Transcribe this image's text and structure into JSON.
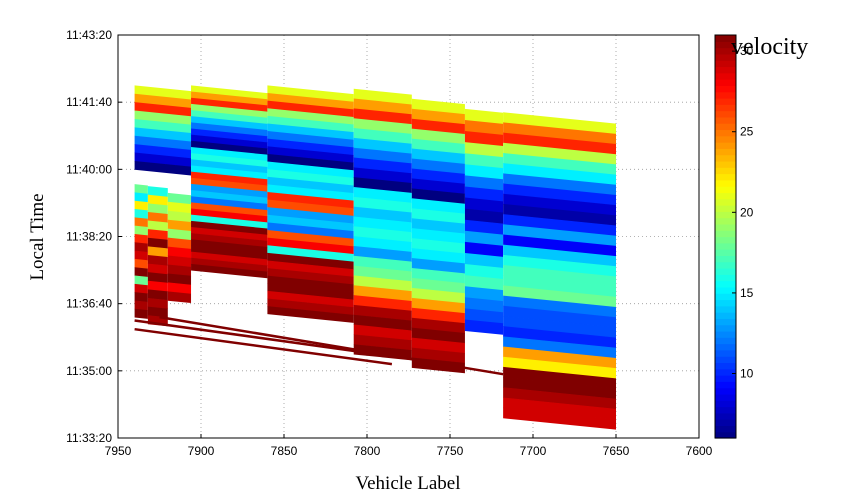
{
  "chart_data": {
    "type": "heatmap",
    "title": "",
    "xlabel": "Vehicle Label",
    "ylabel": "Local Time",
    "x_reversed": true,
    "xlim": [
      7950,
      7600
    ],
    "x_ticks": [
      7950,
      7900,
      7850,
      7800,
      7750,
      7700,
      7650,
      7600
    ],
    "ylim": [
      "11:33:20",
      "11:43:20"
    ],
    "y_ticks": [
      "11:33:20",
      "11:35:00",
      "11:36:40",
      "11:38:20",
      "11:40:00",
      "11:41:40",
      "11:43:20"
    ],
    "grid": true,
    "colorbar": {
      "label": "velocity",
      "range": [
        6,
        31
      ],
      "ticks": [
        10,
        15,
        20,
        25,
        30
      ],
      "colormap": "jet"
    },
    "groups": [
      {
        "x_start": 7940,
        "x_end": 7932,
        "top": "11:39:38",
        "bottom": "11:36:20",
        "bands": [
          18,
          15,
          22,
          16,
          25,
          19,
          27,
          30,
          29,
          26,
          31,
          18,
          29,
          31,
          30,
          31
        ]
      },
      {
        "x_start": 7932,
        "x_end": 7920,
        "top": "11:39:35",
        "bottom": "11:36:10",
        "bands": [
          16,
          22,
          19,
          25,
          20,
          27,
          31,
          24,
          30,
          29,
          31,
          28,
          31,
          30,
          31,
          30
        ]
      },
      {
        "x_start": 7920,
        "x_end": 7906,
        "top": "11:39:25",
        "bottom": "11:36:45",
        "bands": [
          18,
          21,
          20,
          24,
          19,
          26,
          28,
          29,
          30,
          31,
          28,
          30
        ]
      },
      {
        "x_start": 7940,
        "x_end": 7906,
        "top": "11:42:05",
        "bottom": "11:40:00",
        "bands": [
          21,
          24,
          27,
          19,
          17,
          14,
          12,
          10,
          8,
          6
        ]
      },
      {
        "x_start": 7906,
        "x_end": 7860,
        "top": "11:42:05",
        "bottom": "11:37:30",
        "bands": [
          21,
          24,
          27,
          19,
          17,
          14,
          12,
          10,
          8,
          6,
          15,
          16,
          14,
          15,
          27,
          26,
          13,
          14,
          12,
          26,
          28,
          16,
          31,
          29,
          30,
          31,
          31,
          29,
          30,
          31
        ]
      },
      {
        "x_start": 7860,
        "x_end": 7808,
        "top": "11:42:05",
        "bottom": "11:36:25",
        "bands": [
          21,
          24,
          27,
          19,
          17,
          14,
          12,
          10,
          8,
          6,
          15,
          16,
          14,
          15,
          27,
          26,
          13,
          14,
          12,
          26,
          28,
          16,
          31,
          29,
          30,
          31,
          31,
          29,
          30,
          31
        ]
      },
      {
        "x_start": 7808,
        "x_end": 7773,
        "top": "11:42:00",
        "bottom": "11:35:25",
        "bands": [
          21,
          24,
          27,
          19,
          17,
          14,
          12,
          10,
          8,
          6,
          15,
          16,
          14,
          15,
          16,
          15,
          13,
          17,
          18,
          20,
          24,
          27,
          30,
          31,
          29,
          30,
          31
        ]
      },
      {
        "x_start": 7773,
        "x_end": 7741,
        "top": "11:41:45",
        "bottom": "11:35:05",
        "bands": [
          21,
          24,
          27,
          19,
          17,
          14,
          12,
          10,
          8,
          6,
          15,
          16,
          14,
          15,
          16,
          15,
          13,
          17,
          18,
          20,
          24,
          27,
          30,
          31,
          29,
          30,
          31
        ]
      },
      {
        "x_start": 7741,
        "x_end": 7718,
        "top": "11:41:30",
        "bottom": "11:36:00",
        "bands": [
          21,
          25,
          27,
          20,
          17,
          15,
          12,
          10,
          8,
          7,
          10,
          13,
          9,
          14,
          16,
          17,
          13,
          12,
          11,
          10
        ]
      },
      {
        "x_start": 7718,
        "x_end": 7650,
        "top": "11:41:25",
        "bottom": "11:33:50",
        "bands": [
          21,
          25,
          27,
          20,
          17,
          15,
          12,
          10,
          8,
          7,
          10,
          13,
          9,
          14,
          16,
          17,
          17,
          18,
          12,
          11,
          11,
          10,
          12,
          24,
          22,
          31,
          31,
          30,
          29,
          29
        ]
      }
    ],
    "trajectories": [
      {
        "x_start": 7940,
        "x_end": 7785,
        "t_start": "11:36:02",
        "t_end": "11:35:10",
        "value": 31
      },
      {
        "x_start": 7940,
        "x_end": 7745,
        "t_start": "11:36:15",
        "t_end": "11:35:08",
        "value": 31
      },
      {
        "x_start": 7925,
        "x_end": 7718,
        "t_start": "11:36:20",
        "t_end": "11:34:55",
        "value": 31
      }
    ]
  }
}
